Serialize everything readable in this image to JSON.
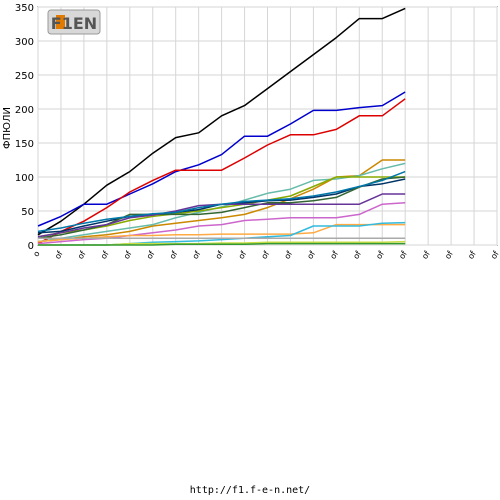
{
  "logo_text": "F1EN",
  "footer_url": "http://f1.f-e-n.net/",
  "chart_data": {
    "type": "line",
    "title": "",
    "ylabel": "ФПЮЛИ",
    "xlabel": "",
    "ylim": [
      0,
      350
    ],
    "yticks": [
      0,
      50,
      100,
      150,
      200,
      250,
      300,
      350
    ],
    "x_tick_labels": [
      "o",
      "of",
      "of",
      "of",
      "of",
      "of",
      "of",
      "of",
      "of",
      "of",
      "of",
      "of",
      "of",
      "of",
      "of",
      "of",
      "of",
      "of",
      "of",
      "of",
      "of"
    ],
    "grid": true,
    "legend": "none",
    "series": [
      {
        "color": "#000000",
        "values": [
          15,
          35,
          60,
          88,
          108,
          135,
          158,
          165,
          190,
          205,
          230,
          255,
          280,
          305,
          333,
          333,
          348
        ]
      },
      {
        "color": "#0000cc",
        "values": [
          28,
          42,
          60,
          60,
          75,
          90,
          108,
          118,
          133,
          160,
          160,
          178,
          198,
          198,
          202,
          205,
          225
        ]
      },
      {
        "color": "#dd0000",
        "values": [
          2,
          20,
          35,
          55,
          78,
          95,
          110,
          110,
          110,
          128,
          147,
          162,
          162,
          170,
          190,
          190,
          215
        ]
      },
      {
        "color": "#cc8800",
        "values": [
          5,
          8,
          12,
          15,
          20,
          28,
          32,
          36,
          40,
          45,
          55,
          68,
          82,
          100,
          102,
          125,
          125
        ]
      },
      {
        "color": "#66bbaa",
        "values": [
          5,
          10,
          15,
          20,
          25,
          30,
          40,
          48,
          56,
          66,
          76,
          82,
          95,
          97,
          102,
          112,
          120
        ]
      },
      {
        "color": "#88aa00",
        "values": [
          12,
          18,
          22,
          28,
          36,
          42,
          46,
          50,
          55,
          60,
          66,
          72,
          86,
          100,
          100,
          100,
          100
        ]
      },
      {
        "color": "#003366",
        "values": [
          18,
          20,
          28,
          35,
          42,
          45,
          48,
          52,
          60,
          62,
          65,
          66,
          70,
          75,
          86,
          90,
          97
        ]
      },
      {
        "color": "#336633",
        "values": [
          10,
          15,
          22,
          30,
          45,
          45,
          45,
          45,
          48,
          55,
          62,
          62,
          65,
          70,
          85,
          97,
          100
        ]
      },
      {
        "color": "#663399",
        "values": [
          12,
          18,
          25,
          30,
          40,
          44,
          50,
          58,
          60,
          60,
          60,
          60,
          60,
          60,
          60,
          75,
          75
        ]
      },
      {
        "color": "#0077aa",
        "values": [
          20,
          25,
          32,
          38,
          42,
          46,
          48,
          55,
          60,
          64,
          66,
          68,
          72,
          78,
          86,
          95,
          108
        ]
      },
      {
        "color": "#cc66cc",
        "values": [
          2,
          5,
          8,
          10,
          14,
          18,
          22,
          28,
          30,
          36,
          38,
          40,
          40,
          40,
          45,
          60,
          62
        ]
      },
      {
        "color": "#ffaa44",
        "values": [
          5,
          8,
          10,
          12,
          14,
          14,
          15,
          15,
          16,
          16,
          16,
          16,
          18,
          30,
          30,
          30,
          30
        ]
      },
      {
        "color": "#33bbdd",
        "values": [
          0,
          0,
          0,
          0,
          2,
          4,
          5,
          6,
          8,
          10,
          12,
          14,
          28,
          28,
          28,
          32,
          33
        ]
      },
      {
        "color": "#aaaaaa",
        "values": [
          10,
          10,
          10,
          10,
          10,
          10,
          10,
          10,
          10,
          10,
          10,
          10,
          10,
          10,
          10,
          10,
          10
        ]
      },
      {
        "color": "#ccdd44",
        "values": [
          0,
          0,
          0,
          0,
          2,
          2,
          2,
          2,
          3,
          3,
          4,
          4,
          4,
          4,
          4,
          4,
          5
        ]
      },
      {
        "color": "#339933",
        "values": [
          0,
          0,
          0,
          0,
          0,
          0,
          1,
          1,
          1,
          1,
          2,
          2,
          2,
          2,
          2,
          2,
          2
        ]
      }
    ]
  }
}
